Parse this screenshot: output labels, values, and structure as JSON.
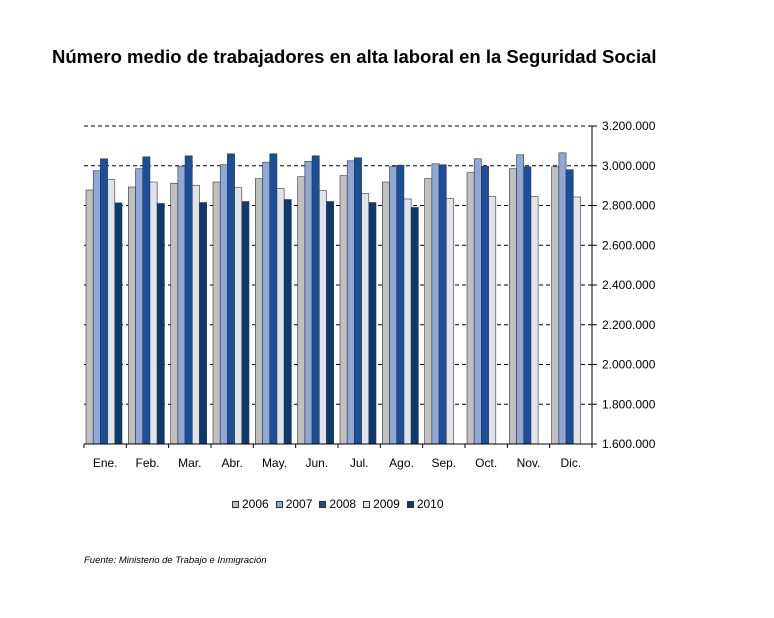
{
  "title": "Número medio de trabajadores en alta laboral en la Seguridad Social",
  "source": "Fuente: Ministerio de Trabajo e Inmigración",
  "chart_data": {
    "type": "bar",
    "categories": [
      "Ene.",
      "Feb.",
      "Mar.",
      "Abr.",
      "May.",
      "Jun.",
      "Jul.",
      "Ago.",
      "Sep.",
      "Oct.",
      "Nov.",
      "Dic."
    ],
    "ylim": [
      1600000,
      3200000
    ],
    "yticks": [
      1600000,
      1800000,
      2000000,
      2200000,
      2400000,
      2600000,
      2800000,
      3000000,
      3200000
    ],
    "ytick_labels": [
      "1.600.000",
      "1.800.000",
      "2.000.000",
      "2.200.000",
      "2.400.000",
      "2.600.000",
      "2.800.000",
      "3.000.000",
      "3.200.000"
    ],
    "y_axis_side": "right",
    "grid": "dashed horizontal",
    "legend_position": "bottom",
    "series": [
      {
        "name": "2006",
        "color": "#c0c0c0",
        "values": [
          2878000,
          2893000,
          2912000,
          2918000,
          2935000,
          2945000,
          2950000,
          2918000,
          2935000,
          2965000,
          2985000,
          2995000
        ]
      },
      {
        "name": "2007",
        "color": "#8ea8d8",
        "values": [
          2975000,
          2985000,
          2998000,
          3005000,
          3018000,
          3022000,
          3025000,
          2995000,
          3010000,
          3035000,
          3055000,
          3065000
        ]
      },
      {
        "name": "2008",
        "color": "#1a4f9c",
        "values": [
          3035000,
          3045000,
          3050000,
          3060000,
          3060000,
          3050000,
          3040000,
          3003000,
          3005000,
          2997000,
          2995000,
          2980000
        ]
      },
      {
        "name": "2009",
        "color": "#e0e4ea",
        "values": [
          2930000,
          2918000,
          2902000,
          2890000,
          2885000,
          2875000,
          2860000,
          2833000,
          2835000,
          2845000,
          2845000,
          2843000
        ]
      },
      {
        "name": "2010",
        "color": "#0d3a6e",
        "values": [
          2813000,
          2810000,
          2815000,
          2820000,
          2830000,
          2820000,
          2815000,
          2790000,
          null,
          null,
          null,
          null
        ]
      }
    ]
  }
}
